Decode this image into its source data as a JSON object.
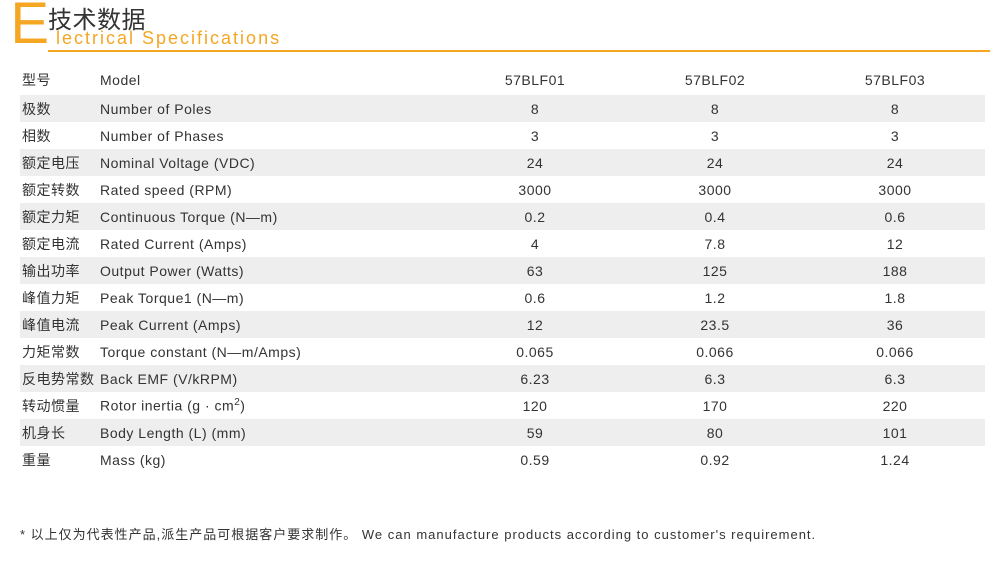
{
  "colors": {
    "accent": "#f5a623",
    "row_alt": "#eeeeee",
    "row_base": "#ffffff",
    "text": "#333333"
  },
  "header": {
    "big_letter": "E",
    "title_cn": "技术数据",
    "title_en": "lectrical  Specifications"
  },
  "table": {
    "columns": [
      {
        "cn": "型号",
        "en": "Model"
      },
      {
        "id": "A",
        "label": "57BLF01"
      },
      {
        "id": "B",
        "label": "57BLF02"
      },
      {
        "id": "C",
        "label": "57BLF03"
      }
    ],
    "rows": [
      {
        "cn": "极数",
        "en": "Number  of  Poles",
        "v": [
          "8",
          "8",
          "8"
        ]
      },
      {
        "cn": "相数",
        "en": "Number  of  Phases",
        "v": [
          "3",
          "3",
          "3"
        ]
      },
      {
        "cn": "额定电压",
        "en": "Nominal  Voltage    (VDC)",
        "v": [
          "24",
          "24",
          "24"
        ]
      },
      {
        "cn": "额定转数",
        "en": "Rated  speed    (RPM)",
        "v": [
          "3000",
          "3000",
          "3000"
        ]
      },
      {
        "cn": "额定力矩",
        "en": "Continuous  Torque    (N—m)",
        "v": [
          "0.2",
          "0.4",
          "0.6"
        ]
      },
      {
        "cn": "额定电流",
        "en": "Rated  Current    (Amps)",
        "v": [
          "4",
          "7.8",
          "12"
        ]
      },
      {
        "cn": "输出功率",
        "en": "Output  Power    (Watts)",
        "v": [
          "63",
          "125",
          "188"
        ]
      },
      {
        "cn": "峰值力矩",
        "en": "Peak  Torque1    (N—m)",
        "v": [
          "0.6",
          "1.2",
          "1.8"
        ]
      },
      {
        "cn": "峰值电流",
        "en": "Peak  Current    (Amps)",
        "v": [
          "12",
          "23.5",
          "36"
        ]
      },
      {
        "cn": "力矩常数",
        "en": "Torque  constant    (N—m/Amps)",
        "v": [
          "0.065",
          "0.066",
          "0.066"
        ]
      },
      {
        "cn": "反电势常数",
        "en": "Back  EMF    (V/kRPM)",
        "v": [
          "6.23",
          "6.3",
          "6.3"
        ]
      },
      {
        "cn": "转动惯量",
        "en": "Rotor  inertia      (g·cm²)",
        "v": [
          "120",
          "170",
          "220"
        ],
        "sup": true
      },
      {
        "cn": "机身长",
        "en": "Body  Length  (L)      (mm)",
        "v": [
          "59",
          "80",
          "101"
        ]
      },
      {
        "cn": "重量",
        "en": "Mass          (kg)",
        "v": [
          "0.59",
          "0.92",
          "1.24"
        ]
      }
    ]
  },
  "footnote": "*  以上仅为代表性产品,派生产品可根据客户要求制作。   We  can  manufacture  products  according  to  customer's  requirement."
}
